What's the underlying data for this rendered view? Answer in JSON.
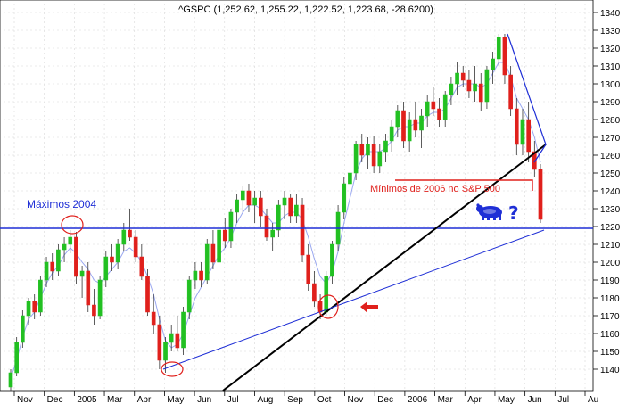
{
  "chart_data": {
    "type": "candlestick",
    "title": "^GSPC (1,252.62, 1,255.22, 1,222.52, 1,223.68, -28.6200)",
    "ylim": [
      1130,
      1345
    ],
    "y_ticks": [
      1140,
      1150,
      1160,
      1170,
      1180,
      1190,
      1200,
      1210,
      1220,
      1230,
      1240,
      1250,
      1260,
      1270,
      1280,
      1290,
      1300,
      1310,
      1320,
      1330,
      1340
    ],
    "x_labels": [
      "Nov",
      "Dec",
      "2005",
      "Mar",
      "Apr",
      "May",
      "Jun",
      "Jul",
      "Aug",
      "Sep",
      "Oct",
      "Nov",
      "Dec",
      "2006",
      "Mar",
      "Apr",
      "May",
      "Jun",
      "Jul",
      "Au"
    ],
    "grid": true,
    "colors": {
      "up": "#22c022",
      "down": "#e0201c",
      "hline": "#1f2fd6",
      "trend_black": "#000000",
      "trend_blue": "#1f2fd6",
      "ma": "#9aa8f0"
    },
    "candles": [
      [
        1130,
        1140,
        1128,
        1138
      ],
      [
        1138,
        1158,
        1136,
        1155
      ],
      [
        1155,
        1173,
        1152,
        1170
      ],
      [
        1170,
        1180,
        1165,
        1178
      ],
      [
        1178,
        1182,
        1168,
        1172
      ],
      [
        1172,
        1192,
        1170,
        1190
      ],
      [
        1190,
        1203,
        1186,
        1200
      ],
      [
        1200,
        1205,
        1190,
        1195
      ],
      [
        1195,
        1210,
        1192,
        1207
      ],
      [
        1207,
        1214,
        1200,
        1210
      ],
      [
        1210,
        1218,
        1205,
        1214
      ],
      [
        1214,
        1217,
        1188,
        1192
      ],
      [
        1192,
        1198,
        1180,
        1195
      ],
      [
        1195,
        1200,
        1172,
        1176
      ],
      [
        1176,
        1185,
        1165,
        1170
      ],
      [
        1170,
        1192,
        1168,
        1190
      ],
      [
        1190,
        1206,
        1186,
        1203
      ],
      [
        1203,
        1210,
        1195,
        1200
      ],
      [
        1200,
        1213,
        1196,
        1210
      ],
      [
        1210,
        1222,
        1206,
        1218
      ],
      [
        1218,
        1230,
        1212,
        1214
      ],
      [
        1214,
        1218,
        1200,
        1203
      ],
      [
        1203,
        1210,
        1190,
        1192
      ],
      [
        1192,
        1196,
        1170,
        1172
      ],
      [
        1172,
        1182,
        1160,
        1165
      ],
      [
        1165,
        1170,
        1140,
        1145
      ],
      [
        1145,
        1158,
        1138,
        1155
      ],
      [
        1155,
        1165,
        1150,
        1160
      ],
      [
        1160,
        1170,
        1150,
        1152
      ],
      [
        1152,
        1175,
        1148,
        1172
      ],
      [
        1172,
        1192,
        1168,
        1190
      ],
      [
        1190,
        1200,
        1185,
        1195
      ],
      [
        1195,
        1200,
        1186,
        1190
      ],
      [
        1190,
        1213,
        1188,
        1210
      ],
      [
        1210,
        1218,
        1196,
        1200
      ],
      [
        1200,
        1222,
        1198,
        1218
      ],
      [
        1218,
        1225,
        1208,
        1212
      ],
      [
        1212,
        1230,
        1208,
        1228
      ],
      [
        1228,
        1238,
        1222,
        1235
      ],
      [
        1235,
        1243,
        1228,
        1240
      ],
      [
        1240,
        1244,
        1228,
        1232
      ],
      [
        1232,
        1240,
        1222,
        1236
      ],
      [
        1236,
        1240,
        1220,
        1226
      ],
      [
        1226,
        1230,
        1212,
        1214
      ],
      [
        1214,
        1222,
        1206,
        1218
      ],
      [
        1218,
        1235,
        1214,
        1232
      ],
      [
        1232,
        1240,
        1224,
        1236
      ],
      [
        1236,
        1238,
        1222,
        1226
      ],
      [
        1226,
        1238,
        1222,
        1232
      ],
      [
        1232,
        1236,
        1200,
        1204
      ],
      [
        1204,
        1210,
        1184,
        1188
      ],
      [
        1188,
        1195,
        1175,
        1178
      ],
      [
        1178,
        1182,
        1168,
        1172
      ],
      [
        1172,
        1195,
        1170,
        1192
      ],
      [
        1192,
        1212,
        1188,
        1210
      ],
      [
        1210,
        1232,
        1206,
        1228
      ],
      [
        1228,
        1248,
        1224,
        1244
      ],
      [
        1244,
        1256,
        1238,
        1250
      ],
      [
        1250,
        1268,
        1246,
        1266
      ],
      [
        1266,
        1272,
        1256,
        1260
      ],
      [
        1260,
        1270,
        1252,
        1266
      ],
      [
        1266,
        1271,
        1250,
        1254
      ],
      [
        1254,
        1266,
        1250,
        1262
      ],
      [
        1262,
        1272,
        1256,
        1268
      ],
      [
        1268,
        1280,
        1262,
        1276
      ],
      [
        1276,
        1288,
        1270,
        1285
      ],
      [
        1285,
        1290,
        1264,
        1268
      ],
      [
        1268,
        1284,
        1262,
        1280
      ],
      [
        1280,
        1290,
        1270,
        1274
      ],
      [
        1274,
        1286,
        1264,
        1282
      ],
      [
        1282,
        1294,
        1276,
        1290
      ],
      [
        1290,
        1298,
        1282,
        1286
      ],
      [
        1286,
        1292,
        1276,
        1280
      ],
      [
        1280,
        1296,
        1276,
        1294
      ],
      [
        1294,
        1304,
        1288,
        1300
      ],
      [
        1300,
        1312,
        1294,
        1306
      ],
      [
        1306,
        1310,
        1298,
        1302
      ],
      [
        1302,
        1308,
        1292,
        1296
      ],
      [
        1296,
        1310,
        1290,
        1300
      ],
      [
        1300,
        1306,
        1285,
        1290
      ],
      [
        1290,
        1310,
        1286,
        1308
      ],
      [
        1308,
        1318,
        1300,
        1314
      ],
      [
        1314,
        1328,
        1310,
        1326
      ],
      [
        1326,
        1328,
        1300,
        1305
      ],
      [
        1305,
        1310,
        1282,
        1286
      ],
      [
        1286,
        1292,
        1260,
        1266
      ],
      [
        1266,
        1286,
        1260,
        1280
      ],
      [
        1280,
        1290,
        1256,
        1262
      ],
      [
        1262,
        1268,
        1248,
        1252
      ],
      [
        1252,
        1255,
        1222,
        1224
      ]
    ],
    "moving_average": [
      1135,
      1145,
      1158,
      1168,
      1172,
      1180,
      1188,
      1194,
      1198,
      1204,
      1208,
      1205,
      1200,
      1196,
      1190,
      1188,
      1192,
      1196,
      1200,
      1206,
      1208,
      1205,
      1200,
      1192,
      1182,
      1168,
      1156,
      1152,
      1154,
      1160,
      1170,
      1180,
      1186,
      1192,
      1198,
      1204,
      1208,
      1214,
      1222,
      1228,
      1232,
      1232,
      1230,
      1226,
      1222,
      1222,
      1226,
      1228,
      1228,
      1224,
      1214,
      1202,
      1192,
      1188,
      1194,
      1206,
      1222,
      1236,
      1250,
      1258,
      1262,
      1262,
      1262,
      1264,
      1268,
      1274,
      1276,
      1276,
      1278,
      1278,
      1282,
      1284,
      1284,
      1286,
      1292,
      1298,
      1300,
      1300,
      1300,
      1298,
      1300,
      1306,
      1312,
      1312,
      1304,
      1292,
      1286,
      1280,
      1270,
      1256
    ],
    "annotations": {
      "maximos_2004": {
        "text": "Máximos 2004",
        "value": 1219
      },
      "minimos_2006": {
        "text": "Mínimos de 2006 no S&P 500",
        "value": 1246
      },
      "question_mark": "?"
    }
  }
}
